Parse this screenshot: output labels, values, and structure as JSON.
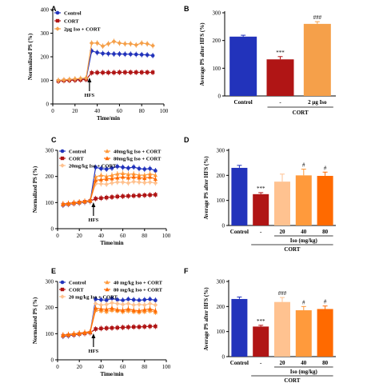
{
  "colors": {
    "control": "#2233bb",
    "cort": "#b01515",
    "iso_light": "#ffc290",
    "iso_mid": "#ff9a3c",
    "iso_dark": "#ff6a00",
    "iso": "#f5a04a"
  },
  "chart_data": [
    {
      "panel": "A",
      "type": "line",
      "xlabel": "Time/min",
      "ylabel": "Normalized PS (%)",
      "xlim": [
        0,
        100
      ],
      "ylim": [
        0,
        400
      ],
      "xticks": [
        "0",
        "20",
        "40",
        "60",
        "80",
        "100"
      ],
      "yticks": [
        "0",
        "100",
        "200",
        "300",
        "400"
      ],
      "annotation": "HFS",
      "legend_position": "top-left",
      "x": [
        5,
        10,
        15,
        20,
        25,
        30,
        35,
        40,
        45,
        50,
        55,
        60,
        65,
        70,
        75,
        80,
        85,
        90
      ],
      "series": [
        {
          "name": "Control",
          "color": "control",
          "values": [
            98,
            100,
            101,
            103,
            104,
            106,
            225,
            218,
            214,
            213,
            212,
            212,
            211,
            211,
            210,
            209,
            208,
            205
          ]
        },
        {
          "name": "CORT",
          "color": "cort",
          "values": [
            97,
            99,
            100,
            101,
            102,
            104,
            132,
            133,
            133,
            133,
            133,
            134,
            134,
            134,
            134,
            134,
            134,
            134
          ]
        },
        {
          "name": "2μg Iso + CORT",
          "color": "iso",
          "values": [
            100,
            102,
            104,
            106,
            108,
            110,
            258,
            258,
            245,
            255,
            265,
            258,
            255,
            255,
            250,
            258,
            255,
            247
          ]
        }
      ]
    },
    {
      "panel": "B",
      "type": "bar",
      "ylabel": "Average PS after HFS (%)",
      "ylim": [
        0,
        300
      ],
      "yticks": [
        "0",
        "100",
        "200",
        "300"
      ],
      "categories": [
        "Control",
        "-",
        "2 μg Iso"
      ],
      "group_label": "CORT",
      "values": [
        214,
        132,
        260
      ],
      "errors": [
        5,
        10,
        8
      ],
      "colors": [
        "control",
        "cort",
        "iso"
      ],
      "significance": [
        "",
        "***",
        "###"
      ]
    },
    {
      "panel": "C",
      "type": "line",
      "xlabel": "Time/min",
      "ylabel": "Normalized PS (%)",
      "xlim": [
        0,
        100
      ],
      "ylim": [
        0,
        300
      ],
      "xticks": [
        "0",
        "20",
        "40",
        "60",
        "80",
        "100"
      ],
      "yticks": [
        "0",
        "100",
        "200",
        "300"
      ],
      "annotation": "HFS",
      "legend_position": "top-left",
      "x": [
        5,
        10,
        15,
        20,
        25,
        30,
        35,
        40,
        45,
        50,
        55,
        60,
        65,
        70,
        75,
        80,
        85,
        90
      ],
      "series": [
        {
          "name": "Control",
          "color": "control",
          "values": [
            90,
            93,
            96,
            98,
            101,
            104,
            235,
            230,
            228,
            232,
            238,
            235,
            232,
            236,
            230,
            228,
            230,
            222
          ]
        },
        {
          "name": "CORT",
          "color": "cort",
          "values": [
            92,
            94,
            97,
            100,
            103,
            106,
            115,
            117,
            119,
            121,
            123,
            124,
            125,
            126,
            127,
            128,
            129,
            130
          ]
        },
        {
          "name": "20mg/kg Iso + CORT",
          "color": "iso_light",
          "values": [
            93,
            95,
            98,
            100,
            103,
            106,
            172,
            172,
            170,
            175,
            178,
            178,
            175,
            180,
            178,
            176,
            178,
            175
          ]
        },
        {
          "name": "40mg/kg Iso + CORT",
          "color": "iso_mid",
          "values": [
            94,
            96,
            99,
            101,
            104,
            107,
            198,
            205,
            200,
            205,
            210,
            212,
            208,
            210,
            205,
            205,
            210,
            205
          ]
        },
        {
          "name": "80mg/kg Iso + CORT",
          "color": "iso_dark",
          "values": [
            95,
            97,
            100,
            102,
            105,
            108,
            185,
            188,
            190,
            192,
            195,
            198,
            195,
            198,
            195,
            193,
            198,
            190
          ]
        }
      ]
    },
    {
      "panel": "D",
      "type": "bar",
      "ylabel": "Average PS after HFS (%)",
      "ylim": [
        0,
        300
      ],
      "yticks": [
        "0",
        "100",
        "200",
        "300"
      ],
      "categories": [
        "Control",
        "-",
        "20",
        "40",
        "80"
      ],
      "group_label": "Iso (mg/kg)",
      "sub_label": "CORT",
      "values": [
        230,
        125,
        175,
        200,
        198
      ],
      "errors": [
        10,
        6,
        30,
        25,
        15
      ],
      "colors": [
        "control",
        "cort",
        "iso_light",
        "iso_mid",
        "iso_dark"
      ],
      "significance": [
        "",
        "***",
        "",
        "#",
        "#"
      ]
    },
    {
      "panel": "E",
      "type": "line",
      "xlabel": "Time/min",
      "ylabel": "Normalized PS (%)",
      "xlim": [
        0,
        100
      ],
      "ylim": [
        0,
        300
      ],
      "xticks": [
        "0",
        "20",
        "40",
        "60",
        "80",
        "100"
      ],
      "yticks": [
        "0",
        "100",
        "200",
        "300"
      ],
      "annotation": "HFS",
      "legend_position": "top-left",
      "x": [
        5,
        10,
        15,
        20,
        25,
        30,
        35,
        40,
        45,
        50,
        55,
        60,
        65,
        70,
        75,
        80,
        85,
        90
      ],
      "series": [
        {
          "name": "Control",
          "color": "control",
          "values": [
            90,
            92,
            95,
            98,
            101,
            104,
            232,
            230,
            228,
            235,
            230,
            228,
            232,
            230,
            228,
            230,
            232,
            228
          ]
        },
        {
          "name": "CORT",
          "color": "cort",
          "values": [
            92,
            94,
            96,
            99,
            101,
            104,
            118,
            120,
            121,
            122,
            123,
            124,
            125,
            126,
            126,
            127,
            128,
            128
          ]
        },
        {
          "name": "20 mg/kg Iso + CORT",
          "color": "iso_light",
          "values": [
            93,
            95,
            98,
            100,
            103,
            106,
            215,
            210,
            212,
            218,
            215,
            212,
            215,
            210,
            212,
            210,
            215,
            210
          ]
        },
        {
          "name": "40 mg/kg Iso + CORT",
          "color": "iso_mid",
          "values": [
            94,
            96,
            99,
            101,
            104,
            107,
            190,
            188,
            185,
            190,
            188,
            185,
            188,
            185,
            183,
            185,
            188,
            182
          ]
        },
        {
          "name": "80 mg/kg Iso + CORT",
          "color": "iso_dark",
          "values": [
            95,
            97,
            100,
            102,
            105,
            108,
            198,
            195,
            193,
            198,
            192,
            190,
            195,
            190,
            188,
            192,
            195,
            188
          ]
        }
      ]
    },
    {
      "panel": "F",
      "type": "bar",
      "ylabel": "Average PS after HFS (%)",
      "ylim": [
        0,
        300
      ],
      "yticks": [
        "0",
        "100",
        "200",
        "300"
      ],
      "categories": [
        "Control",
        "-",
        "20",
        "40",
        "80"
      ],
      "group_label": "Iso (mg/kg)",
      "sub_label": "CORT",
      "values": [
        230,
        120,
        218,
        185,
        190
      ],
      "errors": [
        8,
        5,
        18,
        15,
        12
      ],
      "colors": [
        "control",
        "cort",
        "iso_light",
        "iso_mid",
        "iso_dark"
      ],
      "significance": [
        "",
        "***",
        "###",
        "#",
        "#"
      ]
    }
  ]
}
